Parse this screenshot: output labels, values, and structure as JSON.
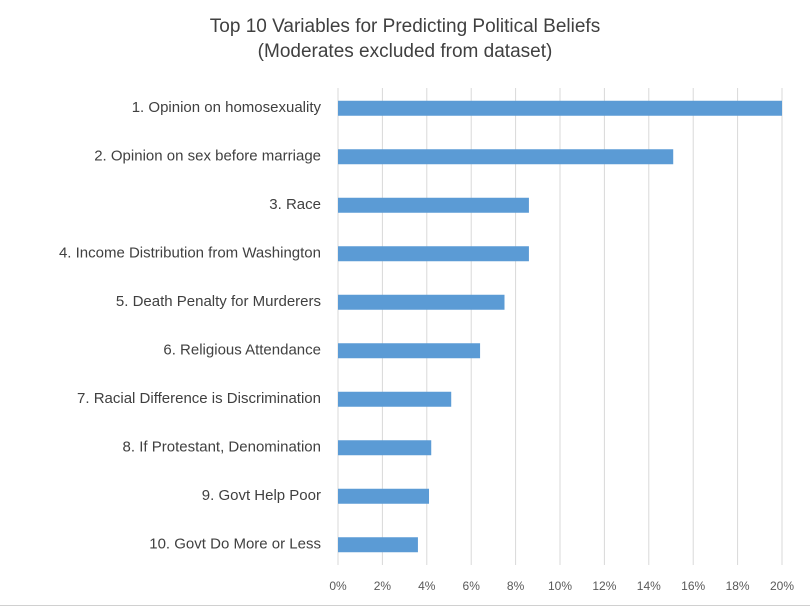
{
  "chart_data": {
    "type": "bar",
    "orientation": "horizontal",
    "title": "Top 10 Variables for Predicting Political Beliefs",
    "subtitle": "(Moderates excluded from dataset)",
    "categories": [
      "1. Opinion on homosexuality",
      "2. Opinion on sex before marriage",
      "3. Race",
      "4. Income Distribution from Washington",
      "5. Death Penalty for Murderers",
      "6. Religious Attendance",
      "7. Racial Difference is Discrimination",
      "8. If Protestant, Denomination",
      "9. Govt Help Poor",
      "10. Govt Do More or Less"
    ],
    "values": [
      20.0,
      15.1,
      8.6,
      8.6,
      7.5,
      6.4,
      5.1,
      4.2,
      4.1,
      3.6
    ],
    "color": "#5b9bd5",
    "xlim": [
      0,
      20
    ],
    "xticks": [
      {
        "value": 0,
        "label": "0%"
      },
      {
        "value": 2,
        "label": "2%"
      },
      {
        "value": 4,
        "label": "4%"
      },
      {
        "value": 6,
        "label": "6%"
      },
      {
        "value": 8,
        "label": "8%"
      },
      {
        "value": 10,
        "label": "10%"
      },
      {
        "value": 12,
        "label": "12%"
      },
      {
        "value": 14,
        "label": "14%"
      },
      {
        "value": 16,
        "label": "16%"
      },
      {
        "value": 18,
        "label": "18%"
      },
      {
        "value": 20,
        "label": "20%"
      }
    ],
    "grid": true
  }
}
